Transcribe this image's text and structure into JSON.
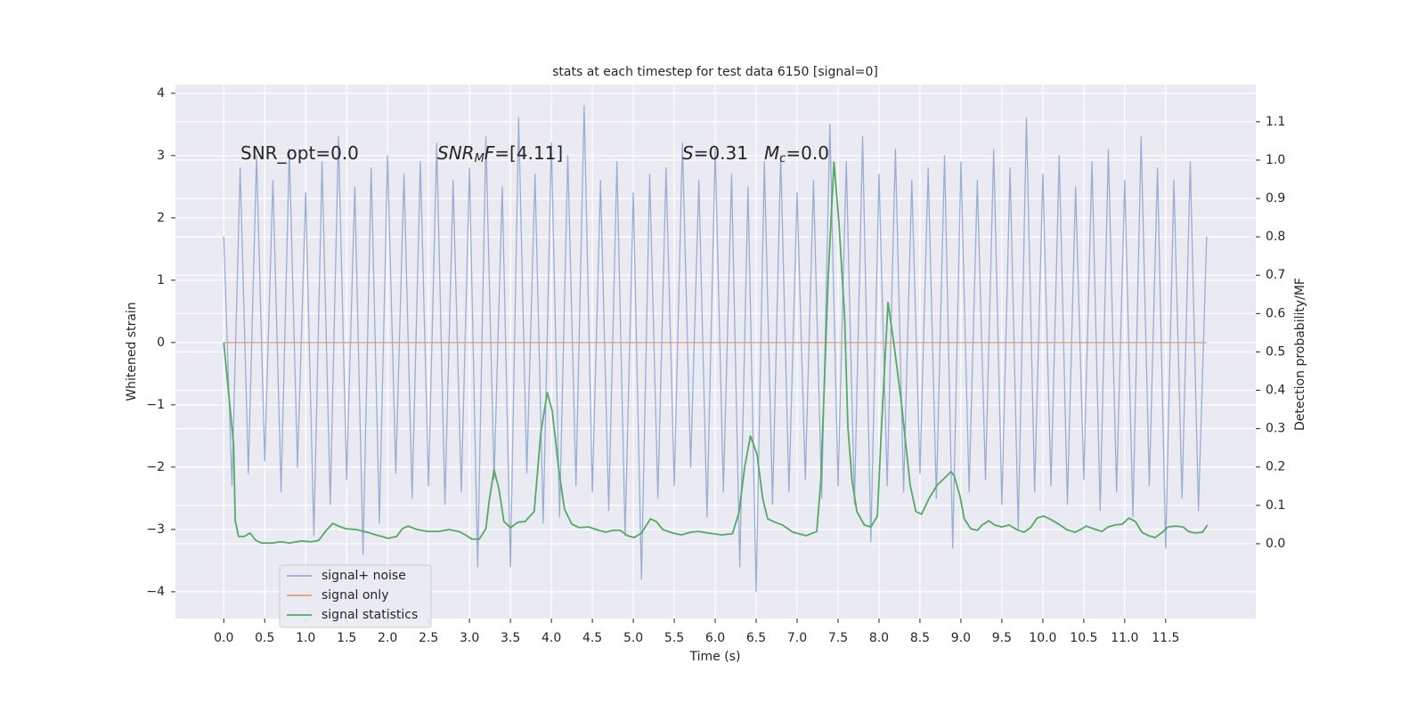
{
  "chart_data": {
    "type": "line",
    "title": "stats at each timestep for test data 6150 [signal=0]",
    "x_label": "Time (s)",
    "y_label": "Whitened strain",
    "y2_label": "Detection probability/MF",
    "xlim": [
      -0.59,
      12.6
    ],
    "ylim": [
      -4.43,
      4.14
    ],
    "y2lim": [
      -0.195,
      1.197
    ],
    "xticks": [
      {
        "value": 0,
        "label": "0.0"
      },
      0.5,
      {
        "value": 1,
        "label": "1.0"
      },
      1.5,
      {
        "value": 2,
        "label": "2.0"
      },
      2.5,
      {
        "value": 3,
        "label": "3.0"
      },
      3.5,
      {
        "value": 4,
        "label": "4.0"
      },
      4.5,
      {
        "value": 5,
        "label": "5.0"
      },
      5.5,
      {
        "value": 6,
        "label": "6.0"
      },
      6.5,
      {
        "value": 7,
        "label": "7.0"
      },
      7.5,
      {
        "value": 8,
        "label": "8.0"
      },
      8.5,
      {
        "value": 9,
        "label": "9.0"
      },
      9.5,
      {
        "value": 10,
        "label": "10.0"
      },
      10.5,
      {
        "value": 11,
        "label": "11.0"
      },
      11.5
    ],
    "yticks": [
      {
        "value": -4,
        "label": "−4"
      },
      {
        "value": -3,
        "label": "−3"
      },
      {
        "value": -2,
        "label": "−2"
      },
      {
        "value": -1,
        "label": "−1"
      },
      0,
      1,
      2,
      3,
      4
    ],
    "y2ticks": [
      {
        "value": 0,
        "label": "0.0"
      },
      0.1,
      0.2,
      0.3,
      0.4,
      0.5,
      0.6,
      0.7,
      0.8,
      0.9,
      {
        "value": 1,
        "label": "1.0"
      },
      1.1
    ],
    "grid": true,
    "legend_loc": "lower left",
    "annotations": [
      {
        "parts": [
          {
            "text": "SNR_opt=0.0"
          }
        ]
      },
      {
        "parts": [
          {
            "text": "SNR",
            "italic": true
          },
          {
            "text": "M",
            "italic": true,
            "sub": true
          },
          {
            "text": "F",
            "italic": true
          },
          {
            "text": "=[4.11]"
          }
        ]
      },
      {
        "parts": [
          {
            "text": "S",
            "italic": true
          },
          {
            "text": "=0.31"
          }
        ]
      },
      {
        "parts": [
          {
            "text": "M",
            "italic": true
          },
          {
            "text": "c",
            "italic": true,
            "sub": true
          },
          {
            "text": "=0.0"
          }
        ]
      }
    ],
    "series": [
      {
        "name": "signal+ noise",
        "color": "#9aaed2",
        "axis": "y",
        "x": [
          0.0,
          0.1,
          0.2,
          0.3,
          0.4,
          0.5,
          0.6,
          0.7,
          0.8,
          0.9,
          1.0,
          1.1,
          1.2,
          1.3,
          1.4,
          1.5,
          1.6,
          1.7,
          1.8,
          1.9,
          2.0,
          2.1,
          2.2,
          2.3,
          2.4,
          2.5,
          2.6,
          2.7,
          2.8,
          2.9,
          3.0,
          3.1,
          3.2,
          3.3,
          3.4,
          3.5,
          3.6,
          3.7,
          3.8,
          3.9,
          4.0,
          4.1,
          4.2,
          4.3,
          4.4,
          4.5,
          4.6,
          4.7,
          4.8,
          4.9,
          5.0,
          5.1,
          5.2,
          5.3,
          5.4,
          5.5,
          5.6,
          5.7,
          5.8,
          5.9,
          6.0,
          6.1,
          6.2,
          6.3,
          6.4,
          6.5,
          6.6,
          6.7,
          6.8,
          6.9,
          7.0,
          7.1,
          7.2,
          7.3,
          7.4,
          7.5,
          7.6,
          7.7,
          7.8,
          7.9,
          8.0,
          8.1,
          8.2,
          8.3,
          8.4,
          8.5,
          8.6,
          8.7,
          8.8,
          8.9,
          9.0,
          9.1,
          9.2,
          9.3,
          9.4,
          9.5,
          9.6,
          9.7,
          9.8,
          9.9,
          10.0,
          10.1,
          10.2,
          10.3,
          10.4,
          10.5,
          10.6,
          10.7,
          10.8,
          10.9,
          11.0,
          11.1,
          11.2,
          11.3,
          11.4,
          11.5,
          11.6,
          11.7,
          11.8,
          11.9,
          12.0
        ],
        "values": [
          1.7,
          -2.3,
          2.8,
          -2.1,
          3.0,
          -1.9,
          2.6,
          -2.4,
          3.1,
          -2.0,
          2.4,
          -3.1,
          2.9,
          -2.6,
          3.3,
          -2.2,
          2.5,
          -3.4,
          2.8,
          -2.9,
          3.0,
          -2.1,
          2.7,
          -2.5,
          2.9,
          -2.3,
          3.2,
          -2.6,
          2.6,
          -2.4,
          2.8,
          -3.6,
          3.3,
          -2.2,
          2.5,
          -3.6,
          3.6,
          -2.1,
          2.7,
          -2.9,
          3.2,
          -2.8,
          3.0,
          -2.3,
          3.8,
          -2.4,
          2.6,
          -2.7,
          2.9,
          -3.1,
          2.4,
          -3.8,
          2.7,
          -2.5,
          2.8,
          -2.3,
          3.2,
          -2.0,
          2.6,
          -2.8,
          3.1,
          -2.4,
          2.7,
          -3.6,
          2.5,
          -4.0,
          2.9,
          -2.6,
          3.0,
          -2.4,
          2.4,
          -2.2,
          2.6,
          -2.5,
          3.5,
          -2.3,
          2.9,
          -2.6,
          3.3,
          -3.2,
          2.7,
          -2.3,
          3.1,
          -2.4,
          2.6,
          -2.1,
          2.8,
          -2.5,
          3.0,
          -3.3,
          2.9,
          -2.4,
          2.6,
          -2.2,
          3.1,
          -2.6,
          2.8,
          -3.0,
          3.6,
          -2.4,
          2.7,
          -2.3,
          3.0,
          -2.6,
          2.5,
          -2.2,
          2.9,
          -2.7,
          3.1,
          -2.4,
          2.6,
          -2.8,
          3.3,
          -2.3,
          2.8,
          -3.3,
          2.6,
          -2.5,
          2.9,
          -2.7,
          1.7
        ]
      },
      {
        "name": "signal only",
        "color": "#e39d7f",
        "axis": "y",
        "x": [
          0.0,
          12.0
        ],
        "values": [
          0,
          0
        ]
      },
      {
        "name": "signal statistics",
        "color": "#55a868",
        "axis": "y2",
        "x": [
          0,
          0.12,
          0.14,
          0.18,
          0.25,
          0.32,
          0.39,
          0.46,
          0.59,
          0.7,
          0.8,
          0.95,
          1.07,
          1.16,
          1.24,
          1.33,
          1.4,
          1.49,
          1.62,
          1.75,
          1.89,
          2.01,
          2.11,
          2.18,
          2.25,
          2.36,
          2.49,
          2.62,
          2.75,
          2.87,
          2.95,
          3.03,
          3.12,
          3.2,
          3.24,
          3.3,
          3.36,
          3.42,
          3.5,
          3.59,
          3.68,
          3.79,
          3.87,
          3.95,
          4.01,
          4.09,
          4.16,
          4.25,
          4.34,
          4.45,
          4.58,
          4.66,
          4.75,
          4.84,
          4.93,
          5.01,
          5.1,
          5.21,
          5.28,
          5.36,
          5.48,
          5.59,
          5.7,
          5.8,
          5.91,
          6.08,
          6.21,
          6.29,
          6.36,
          6.43,
          6.51,
          6.58,
          6.64,
          6.73,
          6.82,
          6.95,
          7.11,
          7.24,
          7.29,
          7.38,
          7.45,
          7.51,
          7.58,
          7.62,
          7.67,
          7.73,
          7.82,
          7.9,
          7.98,
          8.03,
          8.11,
          8.18,
          8.27,
          8.38,
          8.45,
          8.52,
          8.61,
          8.71,
          8.79,
          8.88,
          8.92,
          8.99,
          9.04,
          9.12,
          9.2,
          9.26,
          9.34,
          9.41,
          9.5,
          9.59,
          9.68,
          9.77,
          9.85,
          9.93,
          10.01,
          10.1,
          10.21,
          10.29,
          10.39,
          10.46,
          10.53,
          10.62,
          10.72,
          10.8,
          10.88,
          10.97,
          11.05,
          11.13,
          11.21,
          11.29,
          11.37,
          11.46,
          11.53,
          11.62,
          11.71,
          11.78,
          11.86,
          11.95,
          12.01
        ],
        "values": [
          0.524,
          0.258,
          0.06,
          0.019,
          0.019,
          0.028,
          0.009,
          0.002,
          0.002,
          0.005,
          0.002,
          0.007,
          0.005,
          0.009,
          0.032,
          0.053,
          0.046,
          0.039,
          0.037,
          0.03,
          0.021,
          0.014,
          0.019,
          0.039,
          0.046,
          0.037,
          0.032,
          0.032,
          0.037,
          0.032,
          0.023,
          0.012,
          0.012,
          0.039,
          0.111,
          0.193,
          0.142,
          0.058,
          0.042,
          0.056,
          0.058,
          0.084,
          0.288,
          0.394,
          0.346,
          0.193,
          0.09,
          0.051,
          0.042,
          0.044,
          0.035,
          0.03,
          0.035,
          0.035,
          0.021,
          0.016,
          0.028,
          0.065,
          0.058,
          0.037,
          0.028,
          0.023,
          0.03,
          0.032,
          0.028,
          0.023,
          0.026,
          0.081,
          0.2,
          0.281,
          0.234,
          0.118,
          0.065,
          0.056,
          0.049,
          0.03,
          0.021,
          0.032,
          0.165,
          0.698,
          0.995,
          0.838,
          0.594,
          0.304,
          0.165,
          0.084,
          0.049,
          0.044,
          0.072,
          0.304,
          0.629,
          0.524,
          0.374,
          0.153,
          0.084,
          0.077,
          0.118,
          0.153,
          0.169,
          0.188,
          0.176,
          0.123,
          0.065,
          0.039,
          0.035,
          0.049,
          0.06,
          0.049,
          0.044,
          0.049,
          0.037,
          0.03,
          0.042,
          0.067,
          0.072,
          0.063,
          0.049,
          0.037,
          0.03,
          0.037,
          0.046,
          0.039,
          0.032,
          0.044,
          0.049,
          0.051,
          0.067,
          0.058,
          0.03,
          0.021,
          0.016,
          0.03,
          0.044,
          0.046,
          0.044,
          0.032,
          0.028,
          0.03,
          0.049
        ]
      }
    ]
  }
}
